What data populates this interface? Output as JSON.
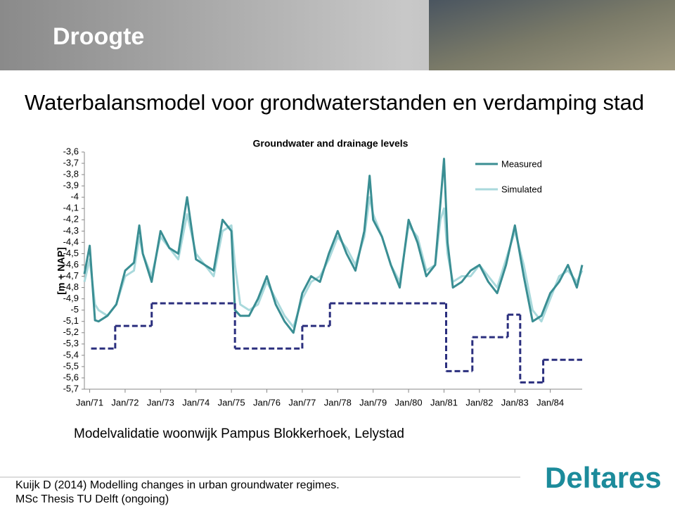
{
  "slide": {
    "title": "Droogte",
    "subtitle": "Waterbalansmodel voor grondwaterstanden en verdamping stad",
    "caption": "Modelvalidatie woonwijk  Pampus Blokkerhoek, Lelystad",
    "footer": [
      "Kuijk D (2014) Modelling changes in urban groundwater regimes.",
      "MSc Thesis TU Delft (ongoing)"
    ],
    "logo": "Deltares"
  },
  "chart_data": {
    "type": "line",
    "title": "Groundwater and drainage levels",
    "y_label": "[m + NAP]",
    "legend_position": "top-right",
    "grid": false,
    "xlim": [
      1970.85,
      1984.9
    ],
    "xticks": [
      {
        "value": 1971,
        "label": "Jan/71"
      },
      {
        "value": 1972,
        "label": "Jan/72"
      },
      {
        "value": 1973,
        "label": "Jan/73"
      },
      {
        "value": 1974,
        "label": "Jan/74"
      },
      {
        "value": 1975,
        "label": "Jan/75"
      },
      {
        "value": 1976,
        "label": "Jan/76"
      },
      {
        "value": 1977,
        "label": "Jan/77"
      },
      {
        "value": 1978,
        "label": "Jan/78"
      },
      {
        "value": 1979,
        "label": "Jan/79"
      },
      {
        "value": 1980,
        "label": "Jan/80"
      },
      {
        "value": 1981,
        "label": "Jan/81"
      },
      {
        "value": 1982,
        "label": "Jan/82"
      },
      {
        "value": 1983,
        "label": "Jan/83"
      },
      {
        "value": 1984,
        "label": "Jan/84"
      }
    ],
    "ylim": [
      -5.7,
      -3.6
    ],
    "yticks": [
      {
        "value": -3.6,
        "label": "-3,6"
      },
      {
        "value": -3.7,
        "label": "-3,7"
      },
      {
        "value": -3.8,
        "label": "-3,8"
      },
      {
        "value": -3.9,
        "label": "-3,9"
      },
      -4,
      {
        "value": -4.1,
        "label": "-4,1"
      },
      {
        "value": -4.2,
        "label": "-4,2"
      },
      {
        "value": -4.3,
        "label": "-4,3"
      },
      {
        "value": -4.4,
        "label": "-4,4"
      },
      {
        "value": -4.5,
        "label": "-4,5"
      },
      {
        "value": -4.6,
        "label": "-4,6"
      },
      {
        "value": -4.7,
        "label": "-4,7"
      },
      {
        "value": -4.8,
        "label": "-4,8"
      },
      {
        "value": -4.9,
        "label": "-4,9"
      },
      -5,
      {
        "value": -5.1,
        "label": "-5,1"
      },
      {
        "value": -5.2,
        "label": "-5,2"
      },
      {
        "value": -5.3,
        "label": "-5,3"
      },
      {
        "value": -5.4,
        "label": "-5,4"
      },
      {
        "value": -5.5,
        "label": "-5,5"
      },
      {
        "value": -5.6,
        "label": "-5,6"
      },
      {
        "value": -5.7,
        "label": "-5,7"
      }
    ],
    "x": [
      1970.85,
      1971.0,
      1971.15,
      1971.25,
      1971.5,
      1971.75,
      1972.0,
      1972.25,
      1972.4,
      1972.5,
      1972.75,
      1973.0,
      1973.25,
      1973.5,
      1973.75,
      1974.0,
      1974.25,
      1974.5,
      1974.75,
      1975.0,
      1975.1,
      1975.25,
      1975.5,
      1975.75,
      1976.0,
      1976.25,
      1976.5,
      1976.75,
      1977.0,
      1977.25,
      1977.5,
      1977.75,
      1978.0,
      1978.25,
      1978.5,
      1978.75,
      1978.9,
      1979.0,
      1979.25,
      1979.5,
      1979.75,
      1980.0,
      1980.25,
      1980.5,
      1980.75,
      1980.9,
      1981.0,
      1981.1,
      1981.25,
      1981.5,
      1981.75,
      1982.0,
      1982.25,
      1982.5,
      1982.75,
      1983.0,
      1983.25,
      1983.5,
      1983.75,
      1984.0,
      1984.25,
      1984.5,
      1984.75,
      1984.9
    ],
    "series": [
      {
        "name": "Measured",
        "color": "#3a8e93",
        "values": [
          -4.68,
          -4.43,
          -5.09,
          -5.1,
          -5.05,
          -4.95,
          -4.65,
          -4.58,
          -4.25,
          -4.5,
          -4.75,
          -4.3,
          -4.45,
          -4.5,
          -4.0,
          -4.55,
          -4.6,
          -4.65,
          -4.2,
          -4.3,
          -5.0,
          -5.05,
          -5.05,
          -4.9,
          -4.7,
          -4.95,
          -5.1,
          -5.2,
          -4.85,
          -4.7,
          -4.75,
          -4.5,
          -4.3,
          -4.5,
          -4.65,
          -4.3,
          -3.81,
          -4.2,
          -4.35,
          -4.6,
          -4.8,
          -4.2,
          -4.4,
          -4.7,
          -4.6,
          -4.05,
          -3.66,
          -4.4,
          -4.8,
          -4.75,
          -4.65,
          -4.6,
          -4.75,
          -4.85,
          -4.6,
          -4.25,
          -4.7,
          -5.1,
          -5.05,
          -4.85,
          -4.75,
          -4.6,
          -4.8,
          -4.6
        ]
      },
      {
        "name": "Simulated",
        "color": "#a9d9dc",
        "values": [
          -4.75,
          -4.55,
          -4.95,
          -5.0,
          -5.05,
          -4.95,
          -4.7,
          -4.65,
          -4.35,
          -4.5,
          -4.7,
          -4.35,
          -4.45,
          -4.55,
          -4.15,
          -4.5,
          -4.6,
          -4.7,
          -4.3,
          -4.25,
          -4.6,
          -4.95,
          -5.0,
          -4.95,
          -4.75,
          -4.9,
          -5.05,
          -5.15,
          -4.9,
          -4.75,
          -4.7,
          -4.55,
          -4.35,
          -4.45,
          -4.6,
          -4.35,
          -4.0,
          -4.15,
          -4.35,
          -4.6,
          -4.75,
          -4.25,
          -4.35,
          -4.65,
          -4.6,
          -4.2,
          -4.1,
          -4.5,
          -4.75,
          -4.7,
          -4.7,
          -4.6,
          -4.7,
          -4.8,
          -4.55,
          -4.3,
          -4.6,
          -5.0,
          -5.1,
          -4.9,
          -4.7,
          -4.65,
          -4.75,
          -4.65
        ]
      },
      {
        "color": "#2b2f7e",
        "dash": true,
        "step": true,
        "x": [
          1971.04,
          1971.72,
          1972.75,
          1975.1,
          1977.0,
          1977.78,
          1981.06,
          1981.8,
          1982.8,
          1983.15,
          1983.8
        ],
        "values": [
          -5.34,
          -5.14,
          -4.94,
          -5.34,
          -5.14,
          -4.94,
          -5.54,
          -5.24,
          -5.04,
          -5.64,
          -5.44
        ]
      }
    ]
  }
}
